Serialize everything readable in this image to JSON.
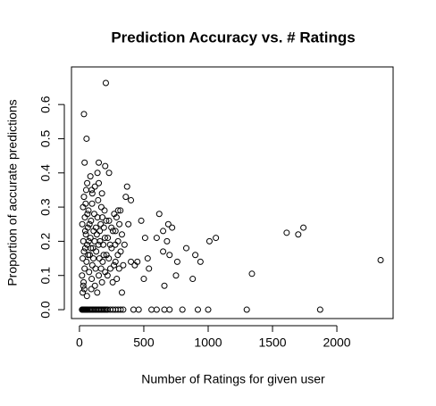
{
  "chart_data": {
    "type": "scatter",
    "title": "Prediction Accuracy vs. # Ratings",
    "x_label": "Number of Ratings for given user",
    "y_label": "Proportion of accurate predictions",
    "xlim": [
      -62,
      2437
    ],
    "ylim": [
      -0.026,
      0.71
    ],
    "xticks": [
      0,
      500,
      1000,
      1500,
      2000
    ],
    "yticks": [
      {
        "value": 0,
        "label": "0.0"
      },
      0.1,
      0.2,
      0.3,
      0.4,
      0.5,
      0.6
    ],
    "series": [
      {
        "color": "#000000",
        "x": [
          20,
          25,
          30,
          35,
          40,
          45,
          50,
          55,
          60,
          70,
          80,
          90,
          100,
          110,
          120,
          130,
          140,
          150,
          160,
          170,
          180,
          190,
          200,
          210,
          220,
          240,
          260,
          280,
          300,
          320,
          340,
          420,
          460,
          560,
          600,
          660,
          700,
          800,
          920,
          1000,
          1300,
          1870,
          205,
          35,
          55,
          40,
          150,
          200,
          140,
          230,
          370,
          400,
          360,
          150,
          100,
          620,
          690,
          720,
          650,
          480,
          510,
          600,
          760,
          700,
          680,
          830,
          900,
          940,
          1010,
          1060,
          1610,
          1700,
          1740,
          1340,
          2340,
          880,
          660,
          750,
          450,
          430,
          500,
          540,
          530,
          650,
          330,
          400,
          380,
          300,
          280,
          20,
          25,
          30,
          22,
          28,
          35,
          40,
          45,
          50,
          32,
          38,
          42,
          48,
          55,
          60,
          65,
          70,
          75,
          80,
          85,
          90,
          95,
          100,
          105,
          110,
          115,
          120,
          125,
          130,
          135,
          140,
          145,
          150,
          155,
          160,
          165,
          170,
          175,
          180,
          185,
          190,
          195,
          200,
          210,
          220,
          230,
          240,
          250,
          260,
          270,
          280,
          290,
          300,
          310,
          320,
          330,
          340,
          350,
          25,
          30,
          35,
          45,
          52,
          58,
          62,
          68,
          72,
          78,
          88,
          92,
          98,
          108,
          118,
          128,
          138,
          148,
          158,
          168,
          178,
          188,
          198,
          208,
          218,
          228,
          238,
          248,
          258,
          268,
          278,
          288,
          298,
          308,
          318,
          85,
          120,
          60,
          175,
          95
        ],
        "values": [
          0,
          0,
          0,
          0,
          0,
          0,
          0,
          0,
          0,
          0,
          0,
          0,
          0,
          0,
          0,
          0,
          0,
          0,
          0,
          0,
          0,
          0,
          0,
          0,
          0,
          0,
          0,
          0,
          0,
          0,
          0,
          0,
          0,
          0,
          0,
          0,
          0,
          0,
          0,
          0,
          0,
          0,
          0.663,
          0.572,
          0.5,
          0.43,
          0.43,
          0.42,
          0.4,
          0.4,
          0.36,
          0.32,
          0.33,
          0.37,
          0.34,
          0.28,
          0.25,
          0.24,
          0.23,
          0.26,
          0.21,
          0.21,
          0.14,
          0.16,
          0.2,
          0.18,
          0.16,
          0.14,
          0.2,
          0.21,
          0.225,
          0.22,
          0.24,
          0.105,
          0.145,
          0.09,
          0.07,
          0.1,
          0.14,
          0.13,
          0.09,
          0.12,
          0.15,
          0.17,
          0.05,
          0.14,
          0.25,
          0.29,
          0.23,
          0.1,
          0.15,
          0.2,
          0.25,
          0.3,
          0.33,
          0.12,
          0.18,
          0.22,
          0.08,
          0.06,
          0.27,
          0.31,
          0.14,
          0.19,
          0.24,
          0.29,
          0.11,
          0.16,
          0.21,
          0.26,
          0.09,
          0.13,
          0.18,
          0.23,
          0.28,
          0.07,
          0.12,
          0.17,
          0.22,
          0.27,
          0.32,
          0.1,
          0.15,
          0.2,
          0.25,
          0.3,
          0.08,
          0.14,
          0.19,
          0.24,
          0.29,
          0.11,
          0.16,
          0.21,
          0.26,
          0.12,
          0.18,
          0.23,
          0.28,
          0.14,
          0.09,
          0.2,
          0.25,
          0.17,
          0.22,
          0.13,
          0.19,
          0.05,
          0.07,
          0.17,
          0.23,
          0.35,
          0.04,
          0.28,
          0.16,
          0.2,
          0.25,
          0.18,
          0.06,
          0.31,
          0.15,
          0.2,
          0.24,
          0.05,
          0.19,
          0.23,
          0.12,
          0.27,
          0.16,
          0.21,
          0.26,
          0.1,
          0.15,
          0.19,
          0.24,
          0.08,
          0.13,
          0.19,
          0.27,
          0.16,
          0.12,
          0.29,
          0.39,
          0.36,
          0.37,
          0.34,
          0.35
        ]
      }
    ]
  }
}
